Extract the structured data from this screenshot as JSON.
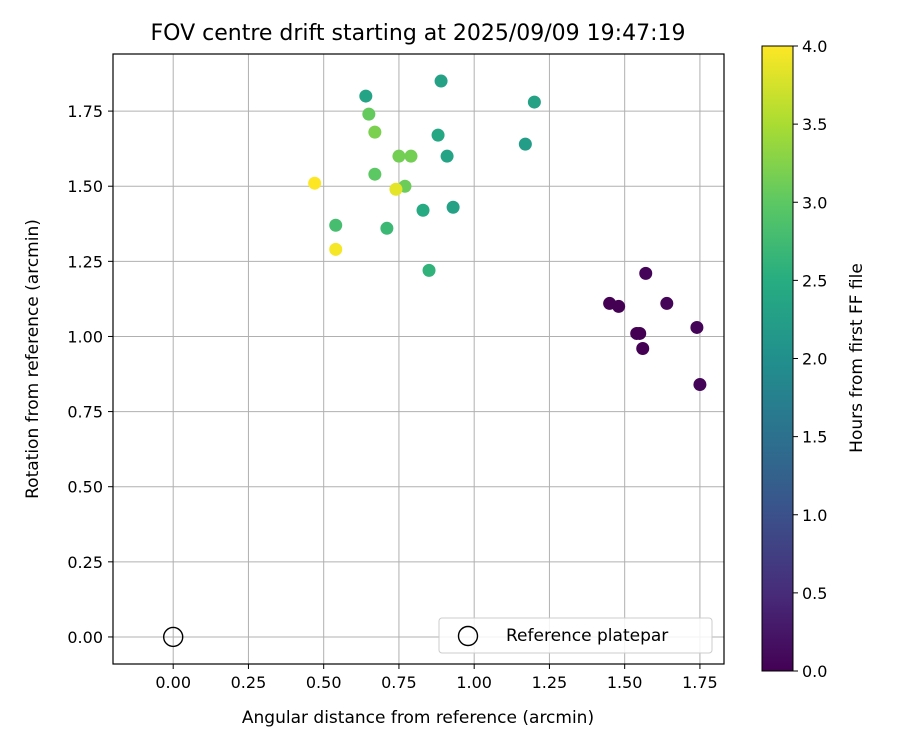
{
  "chart_data": {
    "type": "scatter",
    "title": "FOV centre drift starting at 2025/09/09 19:47:19",
    "xlabel": "Angular distance from reference (arcmin)",
    "ylabel": "Rotation from reference (arcmin)",
    "xlim": [
      -0.2,
      1.83
    ],
    "ylim": [
      -0.09,
      1.94
    ],
    "xticks": [
      0.0,
      0.25,
      0.5,
      0.75,
      1.0,
      1.25,
      1.5,
      1.75
    ],
    "xtick_labels": [
      "0.00",
      "0.25",
      "0.50",
      "0.75",
      "1.00",
      "1.25",
      "1.50",
      "1.75"
    ],
    "yticks": [
      0.0,
      0.25,
      0.5,
      0.75,
      1.0,
      1.25,
      1.5,
      1.75
    ],
    "ytick_labels": [
      "0.00",
      "0.25",
      "0.50",
      "0.75",
      "1.00",
      "1.25",
      "1.50",
      "1.75"
    ],
    "grid": true,
    "colormap": "viridis",
    "colorbar": {
      "label": "Hours from first FF file",
      "range": [
        0.0,
        4.0
      ],
      "ticks": [
        0.0,
        0.5,
        1.0,
        1.5,
        2.0,
        2.5,
        3.0,
        3.5,
        4.0
      ],
      "tick_labels": [
        "0.0",
        "0.5",
        "1.0",
        "1.5",
        "2.0",
        "2.5",
        "3.0",
        "3.5",
        "4.0"
      ]
    },
    "legend": {
      "placement": "lower-right",
      "label": "Reference platepar"
    },
    "reference_point": {
      "x": 0.0,
      "y": 0.0
    },
    "points": [
      {
        "x": 1.45,
        "y": 1.11,
        "hours": 0.0
      },
      {
        "x": 1.48,
        "y": 1.1,
        "hours": 0.0
      },
      {
        "x": 1.57,
        "y": 1.21,
        "hours": 0.05
      },
      {
        "x": 1.64,
        "y": 1.11,
        "hours": 0.05
      },
      {
        "x": 1.54,
        "y": 1.01,
        "hours": 0.0
      },
      {
        "x": 1.55,
        "y": 1.01,
        "hours": 0.0
      },
      {
        "x": 1.56,
        "y": 0.96,
        "hours": 0.0
      },
      {
        "x": 1.74,
        "y": 1.03,
        "hours": 0.05
      },
      {
        "x": 1.75,
        "y": 0.84,
        "hours": 0.05
      },
      {
        "x": 1.2,
        "y": 1.78,
        "hours": 2.3
      },
      {
        "x": 1.17,
        "y": 1.64,
        "hours": 2.2
      },
      {
        "x": 0.89,
        "y": 1.85,
        "hours": 2.3
      },
      {
        "x": 0.64,
        "y": 1.8,
        "hours": 2.35
      },
      {
        "x": 0.88,
        "y": 1.67,
        "hours": 2.4
      },
      {
        "x": 0.91,
        "y": 1.6,
        "hours": 2.35
      },
      {
        "x": 0.93,
        "y": 1.43,
        "hours": 2.3
      },
      {
        "x": 0.83,
        "y": 1.42,
        "hours": 2.45
      },
      {
        "x": 0.85,
        "y": 1.22,
        "hours": 2.6
      },
      {
        "x": 0.71,
        "y": 1.36,
        "hours": 2.7
      },
      {
        "x": 0.54,
        "y": 1.37,
        "hours": 2.8
      },
      {
        "x": 0.67,
        "y": 1.54,
        "hours": 3.0
      },
      {
        "x": 0.77,
        "y": 1.5,
        "hours": 3.1
      },
      {
        "x": 0.75,
        "y": 1.6,
        "hours": 3.15
      },
      {
        "x": 0.79,
        "y": 1.6,
        "hours": 3.15
      },
      {
        "x": 0.65,
        "y": 1.74,
        "hours": 3.05
      },
      {
        "x": 0.67,
        "y": 1.68,
        "hours": 3.2
      },
      {
        "x": 0.47,
        "y": 1.51,
        "hours": 4.0
      },
      {
        "x": 0.54,
        "y": 1.29,
        "hours": 3.95
      },
      {
        "x": 0.74,
        "y": 1.49,
        "hours": 3.85
      }
    ]
  }
}
